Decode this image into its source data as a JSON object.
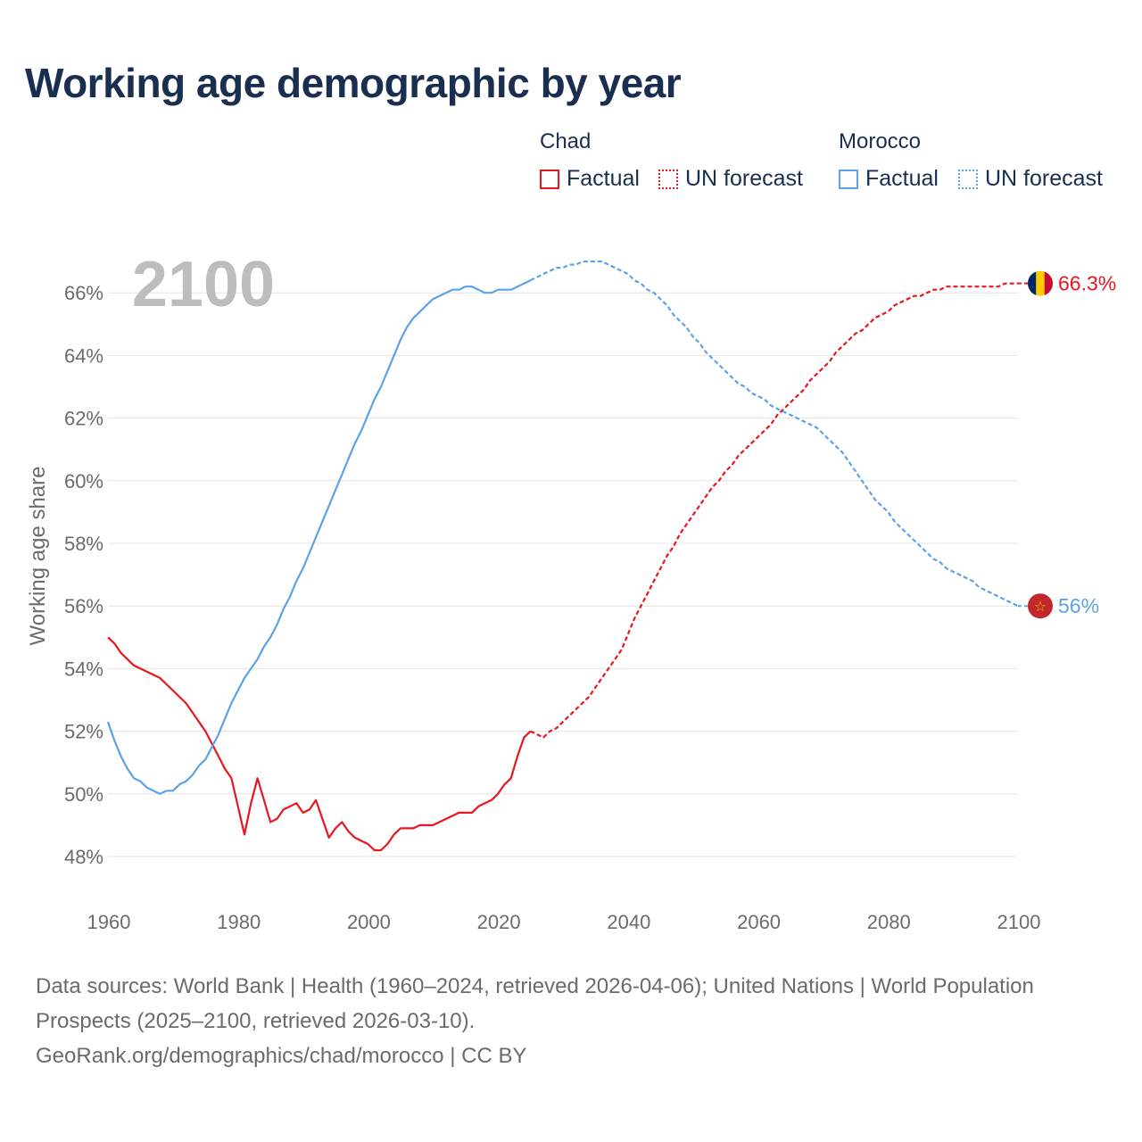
{
  "title": "Working age demographic by year",
  "year_overlay": "2100",
  "legend": {
    "groups": [
      {
        "name": "Chad",
        "color": "#e8161e",
        "factual_label": "Factual",
        "forecast_label": "UN forecast"
      },
      {
        "name": "Morocco",
        "color": "#5ba3e6",
        "factual_label": "Factual",
        "forecast_label": "UN forecast"
      }
    ]
  },
  "chart_data": {
    "type": "line",
    "title": "Working age demographic by year",
    "xlabel": "",
    "ylabel": "Working age share",
    "xlim": [
      1960,
      2100
    ],
    "ylim": [
      47,
      67.5
    ],
    "x_ticks": [
      1960,
      1980,
      2000,
      2020,
      2040,
      2060,
      2080,
      2100
    ],
    "y_ticks": [
      48,
      50,
      52,
      54,
      56,
      58,
      60,
      62,
      64,
      66
    ],
    "y_tick_labels": [
      "48%",
      "50%",
      "52%",
      "54%",
      "56%",
      "58%",
      "60%",
      "62%",
      "64%",
      "66%"
    ],
    "grid": "horizontal",
    "series": [
      {
        "name": "Chad",
        "color": "#e8161e",
        "end_label": "66.3%",
        "flag": "chad-flag-icon",
        "factual": [
          [
            1960,
            55.0
          ],
          [
            1961,
            54.8
          ],
          [
            1962,
            54.5
          ],
          [
            1963,
            54.3
          ],
          [
            1964,
            54.1
          ],
          [
            1965,
            54.0
          ],
          [
            1966,
            53.9
          ],
          [
            1967,
            53.8
          ],
          [
            1968,
            53.7
          ],
          [
            1969,
            53.5
          ],
          [
            1970,
            53.3
          ],
          [
            1971,
            53.1
          ],
          [
            1972,
            52.9
          ],
          [
            1973,
            52.6
          ],
          [
            1974,
            52.3
          ],
          [
            1975,
            52.0
          ],
          [
            1976,
            51.6
          ],
          [
            1977,
            51.2
          ],
          [
            1978,
            50.8
          ],
          [
            1979,
            50.5
          ],
          [
            1980,
            49.6
          ],
          [
            1981,
            48.7
          ],
          [
            1982,
            49.7
          ],
          [
            1983,
            50.5
          ],
          [
            1984,
            49.8
          ],
          [
            1985,
            49.1
          ],
          [
            1986,
            49.2
          ],
          [
            1987,
            49.5
          ],
          [
            1988,
            49.6
          ],
          [
            1989,
            49.7
          ],
          [
            1990,
            49.4
          ],
          [
            1991,
            49.5
          ],
          [
            1992,
            49.8
          ],
          [
            1993,
            49.2
          ],
          [
            1994,
            48.6
          ],
          [
            1995,
            48.9
          ],
          [
            1996,
            49.1
          ],
          [
            1997,
            48.8
          ],
          [
            1998,
            48.6
          ],
          [
            1999,
            48.5
          ],
          [
            2000,
            48.4
          ],
          [
            2001,
            48.2
          ],
          [
            2002,
            48.2
          ],
          [
            2003,
            48.4
          ],
          [
            2004,
            48.7
          ],
          [
            2005,
            48.9
          ],
          [
            2006,
            48.9
          ],
          [
            2007,
            48.9
          ],
          [
            2008,
            49.0
          ],
          [
            2009,
            49.0
          ],
          [
            2010,
            49.0
          ],
          [
            2011,
            49.1
          ],
          [
            2012,
            49.2
          ],
          [
            2013,
            49.3
          ],
          [
            2014,
            49.4
          ],
          [
            2015,
            49.4
          ],
          [
            2016,
            49.4
          ],
          [
            2017,
            49.6
          ],
          [
            2018,
            49.7
          ],
          [
            2019,
            49.8
          ],
          [
            2020,
            50.0
          ],
          [
            2021,
            50.3
          ],
          [
            2022,
            50.5
          ],
          [
            2023,
            51.2
          ],
          [
            2024,
            51.8
          ],
          [
            2025,
            52.0
          ]
        ],
        "forecast": [
          [
            2025,
            52.0
          ],
          [
            2026,
            51.9
          ],
          [
            2027,
            51.8
          ],
          [
            2028,
            52.0
          ],
          [
            2029,
            52.1
          ],
          [
            2030,
            52.3
          ],
          [
            2031,
            52.5
          ],
          [
            2032,
            52.7
          ],
          [
            2033,
            52.9
          ],
          [
            2034,
            53.1
          ],
          [
            2035,
            53.4
          ],
          [
            2036,
            53.7
          ],
          [
            2037,
            54.0
          ],
          [
            2038,
            54.3
          ],
          [
            2039,
            54.6
          ],
          [
            2040,
            55.1
          ],
          [
            2041,
            55.6
          ],
          [
            2042,
            56.0
          ],
          [
            2043,
            56.4
          ],
          [
            2044,
            56.8
          ],
          [
            2045,
            57.2
          ],
          [
            2046,
            57.6
          ],
          [
            2047,
            57.9
          ],
          [
            2048,
            58.3
          ],
          [
            2049,
            58.6
          ],
          [
            2050,
            58.9
          ],
          [
            2051,
            59.2
          ],
          [
            2052,
            59.5
          ],
          [
            2053,
            59.8
          ],
          [
            2054,
            60.0
          ],
          [
            2055,
            60.3
          ],
          [
            2056,
            60.5
          ],
          [
            2057,
            60.8
          ],
          [
            2058,
            61.0
          ],
          [
            2059,
            61.2
          ],
          [
            2060,
            61.4
          ],
          [
            2061,
            61.6
          ],
          [
            2062,
            61.8
          ],
          [
            2063,
            62.1
          ],
          [
            2064,
            62.3
          ],
          [
            2065,
            62.5
          ],
          [
            2066,
            62.7
          ],
          [
            2067,
            62.9
          ],
          [
            2068,
            63.2
          ],
          [
            2069,
            63.4
          ],
          [
            2070,
            63.6
          ],
          [
            2071,
            63.8
          ],
          [
            2072,
            64.1
          ],
          [
            2073,
            64.3
          ],
          [
            2074,
            64.5
          ],
          [
            2075,
            64.7
          ],
          [
            2076,
            64.8
          ],
          [
            2077,
            65.0
          ],
          [
            2078,
            65.2
          ],
          [
            2079,
            65.3
          ],
          [
            2080,
            65.4
          ],
          [
            2081,
            65.6
          ],
          [
            2082,
            65.7
          ],
          [
            2083,
            65.8
          ],
          [
            2084,
            65.9
          ],
          [
            2085,
            65.9
          ],
          [
            2086,
            66.0
          ],
          [
            2087,
            66.1
          ],
          [
            2088,
            66.1
          ],
          [
            2089,
            66.2
          ],
          [
            2090,
            66.2
          ],
          [
            2091,
            66.2
          ],
          [
            2092,
            66.2
          ],
          [
            2093,
            66.2
          ],
          [
            2094,
            66.2
          ],
          [
            2095,
            66.2
          ],
          [
            2096,
            66.2
          ],
          [
            2097,
            66.2
          ],
          [
            2098,
            66.3
          ],
          [
            2099,
            66.3
          ],
          [
            2100,
            66.3
          ]
        ]
      },
      {
        "name": "Morocco",
        "color": "#5ba3e6",
        "end_label": "56%",
        "flag": "morocco-flag-icon",
        "factual": [
          [
            1960,
            52.3
          ],
          [
            1961,
            51.7
          ],
          [
            1962,
            51.2
          ],
          [
            1963,
            50.8
          ],
          [
            1964,
            50.5
          ],
          [
            1965,
            50.4
          ],
          [
            1966,
            50.2
          ],
          [
            1967,
            50.1
          ],
          [
            1968,
            50.0
          ],
          [
            1969,
            50.1
          ],
          [
            1970,
            50.1
          ],
          [
            1971,
            50.3
          ],
          [
            1972,
            50.4
          ],
          [
            1973,
            50.6
          ],
          [
            1974,
            50.9
          ],
          [
            1975,
            51.1
          ],
          [
            1976,
            51.5
          ],
          [
            1977,
            51.9
          ],
          [
            1978,
            52.4
          ],
          [
            1979,
            52.9
          ],
          [
            1980,
            53.3
          ],
          [
            1981,
            53.7
          ],
          [
            1982,
            54.0
          ],
          [
            1983,
            54.3
          ],
          [
            1984,
            54.7
          ],
          [
            1985,
            55.0
          ],
          [
            1986,
            55.4
          ],
          [
            1987,
            55.9
          ],
          [
            1988,
            56.3
          ],
          [
            1989,
            56.8
          ],
          [
            1990,
            57.2
          ],
          [
            1991,
            57.7
          ],
          [
            1992,
            58.2
          ],
          [
            1993,
            58.7
          ],
          [
            1994,
            59.2
          ],
          [
            1995,
            59.7
          ],
          [
            1996,
            60.2
          ],
          [
            1997,
            60.7
          ],
          [
            1998,
            61.2
          ],
          [
            1999,
            61.6
          ],
          [
            2000,
            62.1
          ],
          [
            2001,
            62.6
          ],
          [
            2002,
            63.0
          ],
          [
            2003,
            63.5
          ],
          [
            2004,
            64.0
          ],
          [
            2005,
            64.5
          ],
          [
            2006,
            64.9
          ],
          [
            2007,
            65.2
          ],
          [
            2008,
            65.4
          ],
          [
            2009,
            65.6
          ],
          [
            2010,
            65.8
          ],
          [
            2011,
            65.9
          ],
          [
            2012,
            66.0
          ],
          [
            2013,
            66.1
          ],
          [
            2014,
            66.1
          ],
          [
            2015,
            66.2
          ],
          [
            2016,
            66.2
          ],
          [
            2017,
            66.1
          ],
          [
            2018,
            66.0
          ],
          [
            2019,
            66.0
          ],
          [
            2020,
            66.1
          ],
          [
            2021,
            66.1
          ],
          [
            2022,
            66.1
          ],
          [
            2023,
            66.2
          ],
          [
            2024,
            66.3
          ],
          [
            2025,
            66.4
          ]
        ],
        "forecast": [
          [
            2025,
            66.4
          ],
          [
            2026,
            66.5
          ],
          [
            2027,
            66.6
          ],
          [
            2028,
            66.7
          ],
          [
            2029,
            66.8
          ],
          [
            2030,
            66.8
          ],
          [
            2031,
            66.9
          ],
          [
            2032,
            66.9
          ],
          [
            2033,
            67.0
          ],
          [
            2034,
            67.0
          ],
          [
            2035,
            67.0
          ],
          [
            2036,
            67.0
          ],
          [
            2037,
            66.9
          ],
          [
            2038,
            66.8
          ],
          [
            2039,
            66.7
          ],
          [
            2040,
            66.6
          ],
          [
            2041,
            66.4
          ],
          [
            2042,
            66.3
          ],
          [
            2043,
            66.1
          ],
          [
            2044,
            66.0
          ],
          [
            2045,
            65.8
          ],
          [
            2046,
            65.6
          ],
          [
            2047,
            65.3
          ],
          [
            2048,
            65.1
          ],
          [
            2049,
            64.9
          ],
          [
            2050,
            64.6
          ],
          [
            2051,
            64.4
          ],
          [
            2052,
            64.1
          ],
          [
            2053,
            63.9
          ],
          [
            2054,
            63.7
          ],
          [
            2055,
            63.5
          ],
          [
            2056,
            63.3
          ],
          [
            2057,
            63.1
          ],
          [
            2058,
            63.0
          ],
          [
            2059,
            62.8
          ],
          [
            2060,
            62.7
          ],
          [
            2061,
            62.6
          ],
          [
            2062,
            62.4
          ],
          [
            2063,
            62.3
          ],
          [
            2064,
            62.2
          ],
          [
            2065,
            62.1
          ],
          [
            2066,
            62.0
          ],
          [
            2067,
            61.9
          ],
          [
            2068,
            61.8
          ],
          [
            2069,
            61.7
          ],
          [
            2070,
            61.5
          ],
          [
            2071,
            61.3
          ],
          [
            2072,
            61.1
          ],
          [
            2073,
            60.9
          ],
          [
            2074,
            60.6
          ],
          [
            2075,
            60.3
          ],
          [
            2076,
            60.0
          ],
          [
            2077,
            59.7
          ],
          [
            2078,
            59.4
          ],
          [
            2079,
            59.2
          ],
          [
            2080,
            59.0
          ],
          [
            2081,
            58.7
          ],
          [
            2082,
            58.5
          ],
          [
            2083,
            58.3
          ],
          [
            2084,
            58.1
          ],
          [
            2085,
            57.9
          ],
          [
            2086,
            57.7
          ],
          [
            2087,
            57.5
          ],
          [
            2088,
            57.4
          ],
          [
            2089,
            57.2
          ],
          [
            2090,
            57.1
          ],
          [
            2091,
            57.0
          ],
          [
            2092,
            56.9
          ],
          [
            2093,
            56.8
          ],
          [
            2094,
            56.6
          ],
          [
            2095,
            56.5
          ],
          [
            2096,
            56.4
          ],
          [
            2097,
            56.3
          ],
          [
            2098,
            56.2
          ],
          [
            2099,
            56.1
          ],
          [
            2100,
            56.0
          ]
        ]
      }
    ]
  },
  "footer": {
    "sources": "Data sources: World Bank | Health (1960–2024, retrieved 2026-04-06); United Nations | World Population Prospects (2025–2100, retrieved 2026-03-10).",
    "credit": "GeoRank.org/demographics/chad/morocco | CC BY"
  }
}
